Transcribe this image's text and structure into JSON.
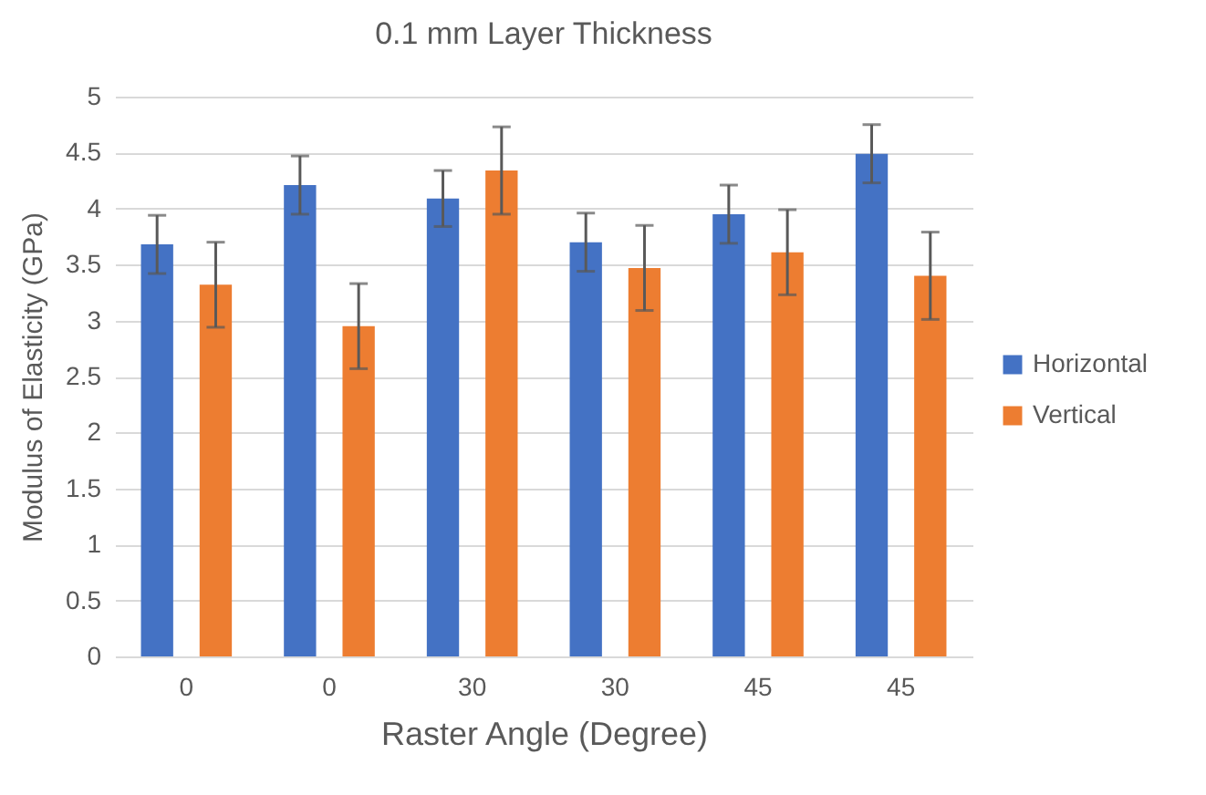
{
  "chart_data": {
    "type": "bar",
    "title": "0.1 mm Layer Thickness",
    "xlabel": "Raster Angle (Degree)",
    "ylabel": "Modulus of Elasticity (GPa)",
    "categories": [
      "0",
      "0",
      "30",
      "30",
      "45",
      "45"
    ],
    "series": [
      {
        "name": "Horizontal",
        "color": "#4472c4",
        "values": [
          3.68,
          4.21,
          4.09,
          3.7,
          3.95,
          4.49
        ],
        "errors": [
          0.26,
          0.26,
          0.25,
          0.26,
          0.26,
          0.26
        ]
      },
      {
        "name": "Vertical",
        "color": "#ed7d31",
        "values": [
          3.32,
          2.95,
          4.34,
          3.47,
          3.61,
          3.4
        ],
        "errors": [
          0.38,
          0.38,
          0.39,
          0.38,
          0.38,
          0.39
        ]
      }
    ],
    "ylim": [
      0,
      5
    ],
    "yticks": [
      0,
      0.5,
      1,
      1.5,
      2,
      2.5,
      3,
      3.5,
      4,
      4.5,
      5
    ],
    "grid": "y",
    "legend": "right"
  }
}
